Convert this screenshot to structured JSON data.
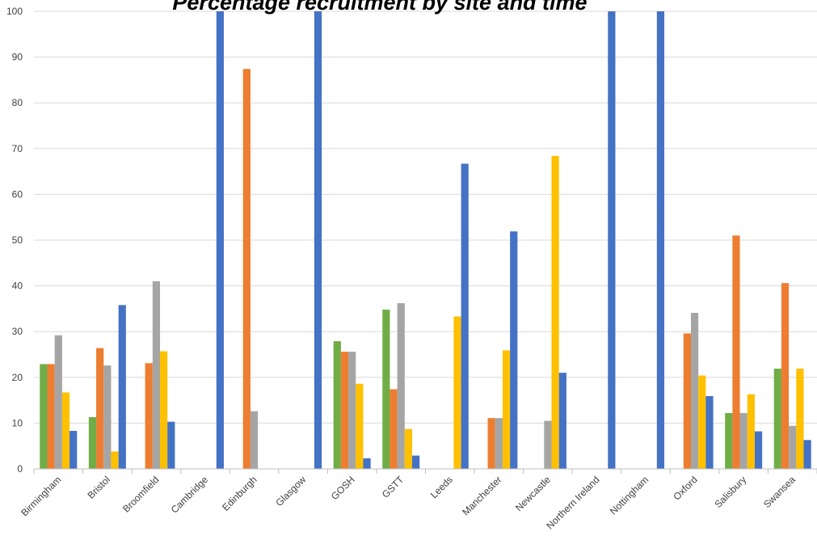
{
  "chart_data": {
    "type": "bar",
    "title": "Percentage recruitment by site and time",
    "xlabel": "",
    "ylabel": "",
    "ylim": [
      0,
      100
    ],
    "yticks": [
      0,
      10,
      20,
      30,
      40,
      50,
      60,
      70,
      80,
      90,
      100
    ],
    "grid": true,
    "categories": [
      "Birmingham",
      "Bristol",
      "Broomfield",
      "Cambridge",
      "Edinburgh",
      "Glasgow",
      "GOSH",
      "GSTT",
      "Leeds",
      "Manchester",
      "Newcastle",
      "Northern Ireland",
      "Nottingham",
      "Oxford",
      "Salisbury",
      "Swansea"
    ],
    "series": [
      {
        "color": "#70ad47",
        "values": [
          22.9,
          11.3,
          0,
          0,
          0,
          0,
          27.9,
          34.8,
          0,
          0,
          0,
          0,
          0,
          0,
          12.2,
          21.9
        ]
      },
      {
        "color": "#ed7d31",
        "values": [
          22.9,
          26.4,
          23.1,
          0,
          87.4,
          0,
          25.6,
          17.4,
          0,
          11.1,
          0,
          0,
          0,
          29.6,
          51.0,
          40.6
        ]
      },
      {
        "color": "#a5a5a5",
        "values": [
          29.2,
          22.6,
          41.0,
          0,
          12.6,
          0,
          25.6,
          36.2,
          0,
          11.1,
          10.5,
          0,
          0,
          34.1,
          12.2,
          9.4
        ]
      },
      {
        "color": "#ffc000",
        "values": [
          16.7,
          3.8,
          25.7,
          0,
          0,
          0,
          18.6,
          8.7,
          33.3,
          25.9,
          68.4,
          0,
          0,
          20.4,
          16.3,
          21.9
        ]
      },
      {
        "color": "#4472c4",
        "values": [
          8.3,
          35.8,
          10.3,
          100,
          0,
          100,
          2.3,
          2.9,
          66.7,
          51.9,
          21.0,
          100,
          100,
          15.9,
          8.2,
          6.3
        ]
      }
    ]
  }
}
